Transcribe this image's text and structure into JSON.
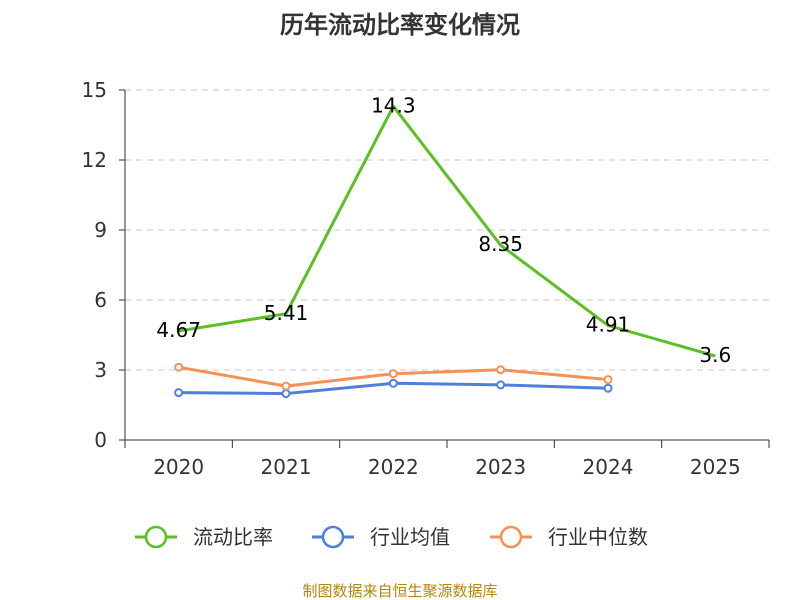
{
  "chart_data": {
    "type": "line",
    "title": "历年流动比率变化情况",
    "categories": [
      "2020",
      "2021",
      "2022",
      "2023",
      "2024",
      "2025"
    ],
    "ylim": [
      0,
      15
    ],
    "yticks": [
      0,
      3,
      6,
      9,
      12,
      15
    ],
    "grid": true,
    "xlabel": "",
    "ylabel": "",
    "series": [
      {
        "name": "流动比率",
        "color": "#5cbf22",
        "values": [
          4.67,
          5.41,
          14.3,
          8.35,
          4.91,
          3.6
        ],
        "labels": [
          "4.67",
          "5.41",
          "14.3",
          "8.35",
          "4.91",
          "3.6"
        ],
        "markers": false
      },
      {
        "name": "行业均值",
        "color": "#4f7fdb",
        "values": [
          2.03,
          1.99,
          2.43,
          2.36,
          2.22,
          null
        ],
        "markers": true
      },
      {
        "name": "行业中位数",
        "color": "#f39156",
        "values": [
          3.12,
          2.31,
          2.84,
          3.01,
          2.59,
          null
        ],
        "markers": true
      }
    ],
    "legend_position": "bottom",
    "source": "制图数据来自恒生聚源数据库"
  }
}
